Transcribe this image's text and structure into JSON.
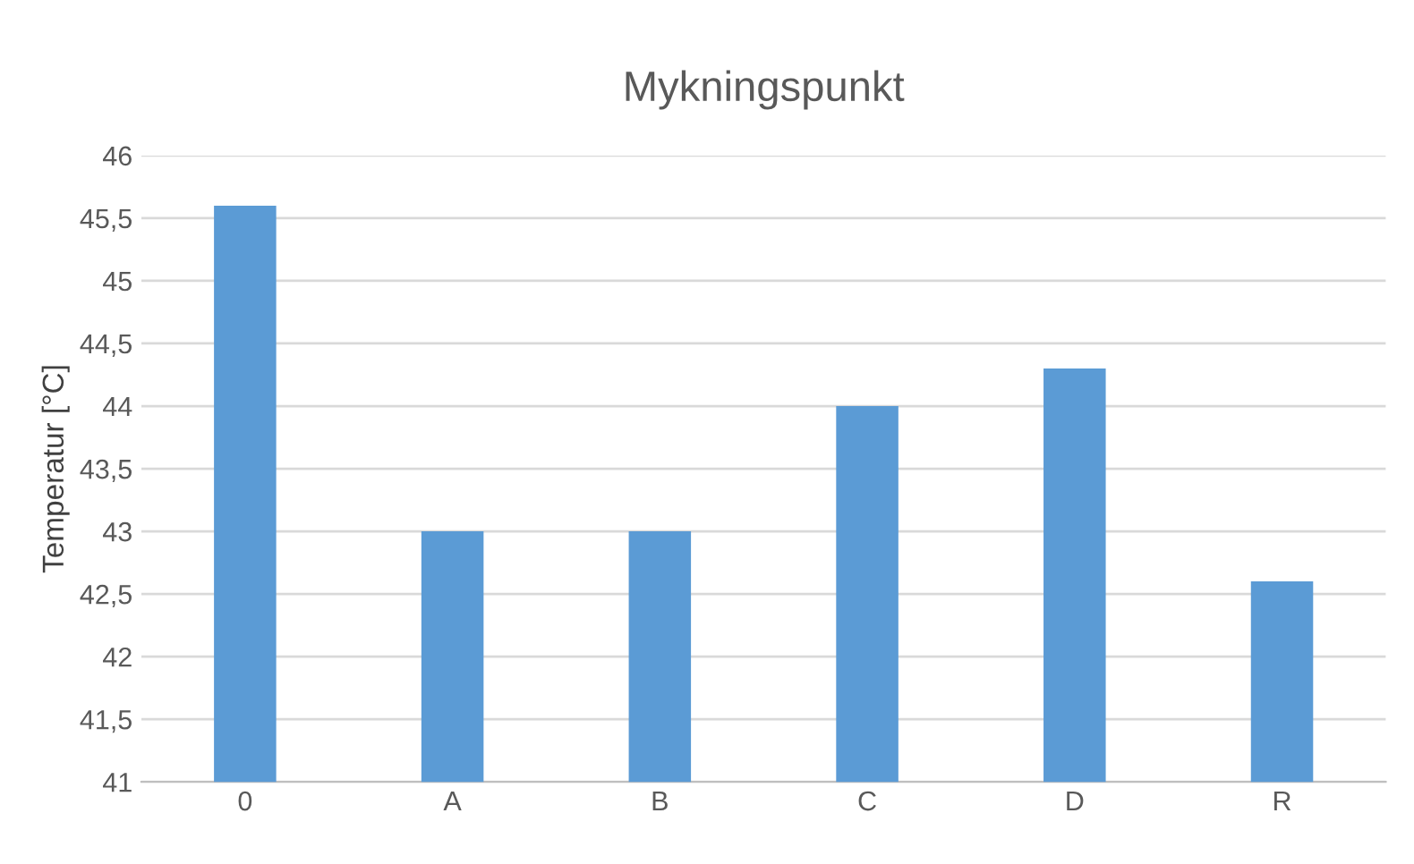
{
  "chart_data": {
    "type": "bar",
    "title": "Mykningspunkt",
    "ylabel": "Temperatur [°C]",
    "categories": [
      "0",
      "A",
      "B",
      "C",
      "D",
      "R"
    ],
    "values": [
      45.6,
      43.0,
      43.0,
      44.0,
      44.3,
      42.6
    ],
    "color": "#5b9bd5",
    "ylim": [
      41,
      46
    ],
    "yticks": [
      41,
      {
        "value": 41.5,
        "label": "41,5"
      },
      42,
      {
        "value": 42.5,
        "label": "42,5"
      },
      43,
      {
        "value": 43.5,
        "label": "43,5"
      },
      44,
      {
        "value": 44.5,
        "label": "44,5"
      },
      45,
      {
        "value": 45.5,
        "label": "45,5"
      },
      46
    ],
    "grid": "y",
    "legend": false
  }
}
